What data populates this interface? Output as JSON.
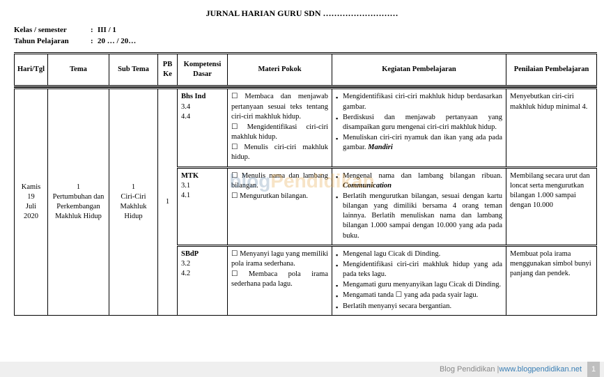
{
  "title": "JURNAL HARIAN GURU SDN ………………………",
  "meta": {
    "kelas_label": "Kelas / semester",
    "kelas_val": "III / 1",
    "tahun_label": "Tahun Pelajaran",
    "tahun_val": "20 … / 20…"
  },
  "headers": {
    "hari": "Hari/Tgl",
    "tema": "Tema",
    "sub": "Sub Tema",
    "pb": "PB Ke",
    "kd": "Kompetensi Dasar",
    "mp": "Materi Pokok",
    "kp": "Kegiatan Pembelajaran",
    "pp": "Penilaian Pembelajaran"
  },
  "row": {
    "hari": "Kamis 19 Juli 2020",
    "tema": "1 Pertumbuhan dan Perkembangan Makhluk Hidup",
    "sub": "1 Ciri-Ciri Makhluk Hidup",
    "pb": "1"
  },
  "subjects": [
    {
      "kd_label": "Bhs Ind",
      "kd_codes": "3.4\n4.4",
      "mp": [
        "Membaca dan menjawab pertanyaan sesuai teks tentang ciri-ciri makhluk hidup.",
        "Mengidentifikasi ciri-ciri makhluk hidup.",
        "Menulis ciri-ciri makhluk hidup."
      ],
      "kp": [
        "Mengidentifikasi ciri-ciri makhluk hidup berdasarkan gambar.",
        "Berdiskusi dan menjawab pertanyaan yang disampaikan guru mengenai ciri-ciri makhluk hidup.",
        "Menuliskan ciri-ciri nyamuk dan ikan yang ada pada gambar. <span class=\"bi\">Mandiri</span>"
      ],
      "pp": "Menyebutkan ciri-ciri makhluk hidup minimal 4."
    },
    {
      "kd_label": "MTK",
      "kd_codes": "3.1\n4.1",
      "mp": [
        "Menulis nama dan lambang bilangan.",
        "Mengurutkan bilangan."
      ],
      "kp": [
        "Mengenal nama dan lambang bilangan ribuan. <span class=\"bi\">Communication</span>",
        "Berlatih mengurutkan bilangan, sesuai dengan kartu bilangan yang dimiliki bersama 4 orang teman lainnya. Berlatih menuliskan nama dan lambang bilangan 1.000 sampai dengan 10.000 yang ada pada buku."
      ],
      "pp": "Membilang secara urut dan loncat serta mengurutkan bilangan 1.000 sampai dengan 10.000"
    },
    {
      "kd_label": "SBdP",
      "kd_codes": "3.2\n4.2",
      "mp": [
        "Menyanyi lagu yang memiliki pola irama sederhana.",
        "Membaca pola irama sederhana pada lagu."
      ],
      "kp": [
        "Mengenal lagu Cicak di Dinding.",
        "Mengidentifikasi ciri-ciri makhluk hidup yang ada pada teks lagu.",
        "Mengamati guru menyanyikan lagu Cicak di Dinding.",
        "Mengamati tanda ☐ yang ada pada syair lagu.",
        "Berlatih menyanyi secara bergantian."
      ],
      "pp": "Membuat pola irama menggunakan simbol bunyi panjang dan pendek."
    }
  ],
  "watermark": {
    "part1": "blog",
    "part2": "Pendidikan"
  },
  "footer": {
    "text": "Blog Pendidikan | ",
    "link": "www.blogpendidikan.net",
    "page": "1"
  }
}
